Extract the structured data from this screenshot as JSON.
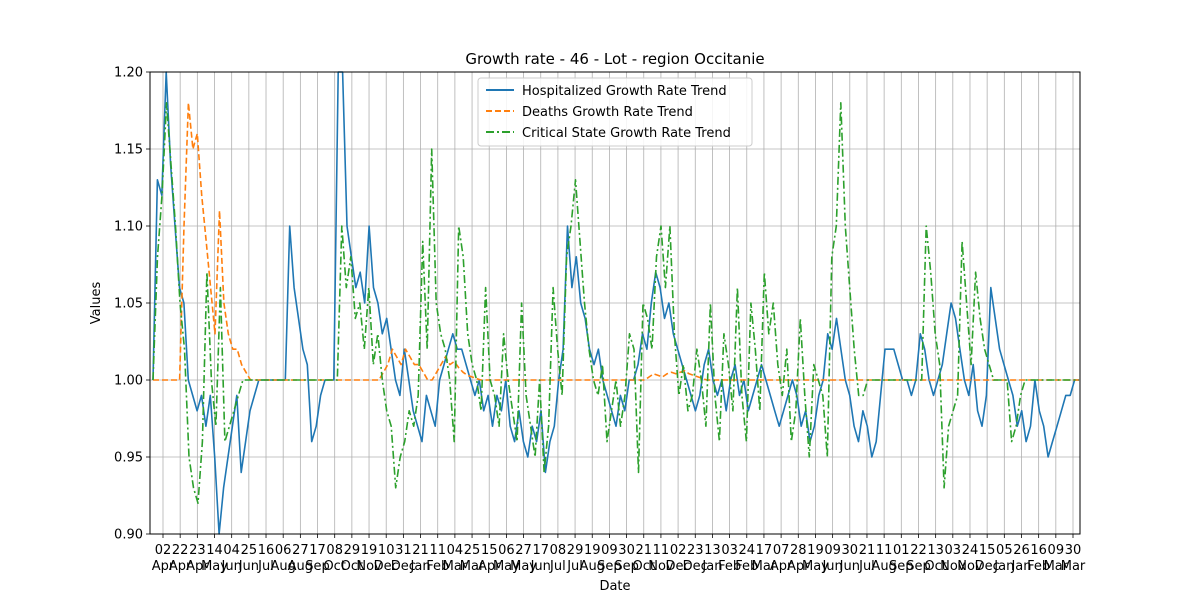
{
  "chart_data": {
    "type": "line",
    "title": "Growth rate - 46 - Lot - region Occitanie",
    "xlabel": "Date",
    "ylabel": "Values",
    "ylim": [
      0.9,
      1.2
    ],
    "y_ticks": [
      "0.90",
      "0.95",
      "1.00",
      "1.05",
      "1.10",
      "1.15",
      "1.20"
    ],
    "grid": true,
    "legend_position": "top-center",
    "x_ticks": [
      {
        "day": "02",
        "month": "Apr"
      },
      {
        "day": "22",
        "month": "Apr"
      },
      {
        "day": "23",
        "month": "Apr"
      },
      {
        "day": "14",
        "month": "May"
      },
      {
        "day": "04",
        "month": "Jun"
      },
      {
        "day": "25",
        "month": "Jun"
      },
      {
        "day": "16",
        "month": "Jul"
      },
      {
        "day": "06",
        "month": "Aug"
      },
      {
        "day": "27",
        "month": "Aug"
      },
      {
        "day": "17",
        "month": "Sep"
      },
      {
        "day": "08",
        "month": "Oct"
      },
      {
        "day": "29",
        "month": "Oct"
      },
      {
        "day": "19",
        "month": "Nov"
      },
      {
        "day": "10",
        "month": "Dec"
      },
      {
        "day": "31",
        "month": "Dec"
      },
      {
        "day": "21",
        "month": "Jan"
      },
      {
        "day": "11",
        "month": "Feb"
      },
      {
        "day": "04",
        "month": "Mar"
      },
      {
        "day": "25",
        "month": "Mar"
      },
      {
        "day": "15",
        "month": "Apr"
      },
      {
        "day": "06",
        "month": "May"
      },
      {
        "day": "27",
        "month": "May"
      },
      {
        "day": "17",
        "month": "Jun"
      },
      {
        "day": "08",
        "month": "Jul"
      },
      {
        "day": "29",
        "month": "Jul"
      },
      {
        "day": "19",
        "month": "Aug"
      },
      {
        "day": "09",
        "month": "Sep"
      },
      {
        "day": "30",
        "month": "Sep"
      },
      {
        "day": "21",
        "month": "Oct"
      },
      {
        "day": "11",
        "month": "Nov"
      },
      {
        "day": "02",
        "month": "Dec"
      },
      {
        "day": "23",
        "month": "Dec"
      },
      {
        "day": "13",
        "month": "Jan"
      },
      {
        "day": "03",
        "month": "Feb"
      },
      {
        "day": "24",
        "month": "Feb"
      },
      {
        "day": "17",
        "month": "Mar"
      },
      {
        "day": "07",
        "month": "Apr"
      },
      {
        "day": "28",
        "month": "Apr"
      },
      {
        "day": "19",
        "month": "May"
      },
      {
        "day": "09",
        "month": "Jun"
      },
      {
        "day": "30",
        "month": "Jun"
      },
      {
        "day": "21",
        "month": "Jul"
      },
      {
        "day": "11",
        "month": "Aug"
      },
      {
        "day": "01",
        "month": "Sep"
      },
      {
        "day": "22",
        "month": "Sep"
      },
      {
        "day": "13",
        "month": "Oct"
      },
      {
        "day": "03",
        "month": "Nov"
      },
      {
        "day": "24",
        "month": "Nov"
      },
      {
        "day": "15",
        "month": "Dec"
      },
      {
        "day": "05",
        "month": "Jan"
      },
      {
        "day": "26",
        "month": "Jan"
      },
      {
        "day": "16",
        "month": "Feb"
      },
      {
        "day": "09",
        "month": "Mar"
      },
      {
        "day": "30",
        "month": "Mar"
      }
    ],
    "series": [
      {
        "name": "Hospitalized Growth Rate Trend",
        "color": "#1f77b4",
        "style": "solid",
        "values": [
          1.0,
          1.13,
          1.12,
          1.2,
          1.14,
          1.1,
          1.06,
          1.05,
          1.0,
          0.99,
          0.98,
          0.99,
          0.97,
          0.99,
          0.95,
          0.9,
          0.93,
          0.95,
          0.97,
          0.99,
          0.94,
          0.96,
          0.98,
          0.99,
          1.0,
          1.0,
          1.0,
          1.0,
          1.0,
          1.0,
          1.0,
          1.1,
          1.06,
          1.04,
          1.02,
          1.01,
          0.96,
          0.97,
          0.99,
          1.0,
          1.0,
          1.0,
          1.2,
          1.2,
          1.1,
          1.08,
          1.06,
          1.07,
          1.05,
          1.1,
          1.06,
          1.05,
          1.03,
          1.04,
          1.02,
          1.0,
          0.99,
          1.02,
          1.0,
          0.98,
          0.97,
          0.96,
          0.99,
          0.98,
          0.97,
          1.0,
          1.01,
          1.02,
          1.03,
          1.02,
          1.02,
          1.01,
          1.0,
          0.99,
          1.0,
          0.98,
          0.99,
          0.97,
          0.99,
          0.98,
          1.0,
          0.97,
          0.96,
          0.98,
          0.96,
          0.95,
          0.97,
          0.96,
          0.98,
          0.94,
          0.96,
          0.97,
          1.0,
          1.02,
          1.1,
          1.06,
          1.08,
          1.05,
          1.04,
          1.02,
          1.01,
          1.02,
          1.0,
          0.99,
          0.98,
          0.97,
          0.99,
          0.98,
          1.0,
          1.0,
          1.01,
          1.03,
          1.02,
          1.05,
          1.07,
          1.06,
          1.04,
          1.05,
          1.03,
          1.02,
          1.01,
          1.0,
          0.99,
          0.98,
          0.99,
          1.01,
          1.02,
          1.0,
          0.99,
          1.0,
          0.98,
          1.0,
          1.01,
          0.99,
          1.0,
          0.98,
          0.99,
          1.0,
          1.01,
          1.0,
          0.99,
          0.98,
          0.97,
          0.98,
          0.99,
          1.0,
          0.99,
          0.97,
          0.98,
          0.96,
          0.97,
          0.99,
          1.0,
          1.03,
          1.02,
          1.04,
          1.02,
          1.0,
          0.99,
          0.97,
          0.96,
          0.98,
          0.97,
          0.95,
          0.96,
          0.99,
          1.02,
          1.02,
          1.02,
          1.01,
          1.0,
          1.0,
          0.99,
          1.0,
          1.03,
          1.02,
          1.0,
          0.99,
          1.0,
          1.01,
          1.03,
          1.05,
          1.04,
          1.02,
          1.0,
          0.99,
          1.01,
          0.98,
          0.97,
          0.99,
          1.06,
          1.04,
          1.02,
          1.01,
          1.0,
          0.99,
          0.97,
          0.98,
          0.96,
          0.97,
          1.0,
          0.98,
          0.97,
          0.95,
          0.96,
          0.97,
          0.98,
          0.99,
          0.99,
          1.0,
          1.0
        ]
      },
      {
        "name": "Deaths Growth Rate Trend",
        "color": "#ff7f0e",
        "style": "dashed",
        "values": [
          1.0,
          1.0,
          1.0,
          1.0,
          1.0,
          1.0,
          1.0,
          1.1,
          1.18,
          1.15,
          1.16,
          1.12,
          1.09,
          1.06,
          1.03,
          1.11,
          1.05,
          1.03,
          1.02,
          1.02,
          1.01,
          1.005,
          1.0,
          1.0,
          1.0,
          1.0,
          1.0,
          1.0,
          1.0,
          1.0,
          1.0,
          1.0,
          1.0,
          1.0,
          1.0,
          1.0,
          1.0,
          1.0,
          1.0,
          1.0,
          1.0,
          1.0,
          1.0,
          1.0,
          1.0,
          1.0,
          1.0,
          1.0,
          1.0,
          1.0,
          1.0,
          1.0,
          1.005,
          1.01,
          1.02,
          1.015,
          1.01,
          1.02,
          1.015,
          1.01,
          1.01,
          1.005,
          1.0,
          1.0,
          1.005,
          1.01,
          1.015,
          1.01,
          1.012,
          1.008,
          1.005,
          1.003,
          1.002,
          1.001,
          1.0,
          1.0,
          1.0,
          1.0,
          1.0,
          1.0,
          1.0,
          1.0,
          1.0,
          1.0,
          1.0,
          1.0,
          1.0,
          1.0,
          1.0,
          1.0,
          1.0,
          1.0,
          1.0,
          1.0,
          1.0,
          1.0,
          1.0,
          1.0,
          1.0,
          1.0,
          1.0,
          1.0,
          1.0,
          1.0,
          1.0,
          1.0,
          1.0,
          1.0,
          1.0,
          1.0,
          1.0,
          1.0,
          1.002,
          1.004,
          1.003,
          1.002,
          1.004,
          1.005,
          1.004,
          1.005,
          1.006,
          1.004,
          1.003,
          1.002,
          1.001,
          1.0,
          1.0,
          1.0,
          1.0,
          1.0,
          1.0,
          1.0,
          1.0,
          1.0,
          1.0,
          1.0,
          1.0,
          1.0,
          1.0,
          1.0,
          1.0,
          1.0,
          1.0,
          1.0,
          1.0,
          1.0,
          1.0,
          1.0,
          1.0,
          1.0,
          1.0,
          1.0,
          1.0,
          1.0,
          1.0,
          1.0,
          1.0,
          1.0,
          1.0,
          1.0,
          1.0,
          1.0,
          1.0,
          1.0,
          1.0,
          1.0,
          1.0,
          1.0,
          1.0,
          1.0,
          1.0,
          1.0,
          1.0,
          1.0,
          1.0,
          1.0,
          1.0,
          1.0,
          1.0,
          1.0,
          1.0,
          1.0,
          1.0,
          1.0,
          1.0,
          1.0,
          1.0,
          1.0,
          1.0,
          1.0,
          1.0,
          1.0,
          1.0,
          1.0,
          1.0,
          1.0,
          1.0,
          1.0,
          1.0,
          1.0,
          1.0,
          1.0,
          1.0,
          1.0,
          1.0,
          1.0,
          1.0,
          1.0,
          1.0,
          1.0
        ]
      },
      {
        "name": "Critical State Growth Rate Trend",
        "color": "#2ca02c",
        "style": "dashdot",
        "values": [
          1.0,
          1.08,
          1.12,
          1.18,
          1.14,
          1.1,
          1.05,
          1.02,
          0.95,
          0.93,
          0.92,
          0.96,
          1.07,
          1.0,
          0.97,
          1.06,
          0.96,
          0.97,
          0.98,
          0.99,
          1.0,
          1.0,
          1.0,
          1.0,
          1.0,
          1.0,
          1.0,
          1.0,
          1.0,
          1.0,
          1.0,
          1.0,
          1.0,
          1.0,
          1.0,
          1.0,
          1.0,
          1.0,
          1.0,
          1.0,
          1.0,
          1.0,
          1.1,
          1.06,
          1.08,
          1.04,
          1.05,
          1.02,
          1.06,
          1.01,
          1.03,
          1.0,
          0.98,
          0.97,
          0.93,
          0.95,
          0.96,
          0.98,
          0.97,
          0.99,
          1.09,
          1.02,
          1.15,
          1.05,
          1.03,
          1.02,
          1.0,
          0.96,
          1.1,
          1.08,
          1.03,
          1.01,
          1.0,
          0.98,
          1.06,
          1.0,
          0.99,
          0.97,
          1.03,
          1.0,
          0.98,
          0.96,
          1.05,
          0.99,
          0.97,
          0.95,
          1.0,
          0.94,
          0.97,
          1.06,
          1.02,
          0.99,
          1.08,
          1.1,
          1.13,
          1.09,
          1.05,
          1.02,
          1.0,
          0.99,
          1.01,
          0.96,
          0.98,
          1.0,
          0.97,
          0.99,
          1.03,
          1.02,
          0.94,
          1.05,
          1.04,
          1.02,
          1.08,
          1.1,
          1.06,
          1.1,
          1.03,
          0.99,
          1.01,
          0.98,
          0.99,
          1.02,
          1.0,
          0.97,
          1.05,
          0.99,
          0.96,
          1.03,
          1.01,
          0.98,
          1.06,
          0.99,
          0.96,
          1.05,
          1.02,
          0.98,
          1.07,
          1.03,
          1.05,
          1.01,
          0.99,
          1.02,
          0.96,
          0.98,
          1.04,
          0.99,
          0.95,
          1.01,
          1.0,
          0.99,
          0.95,
          1.08,
          1.1,
          1.18,
          1.1,
          1.06,
          1.02,
          0.99,
          0.99,
          1.0,
          1.0,
          1.0,
          1.0,
          1.0,
          1.0,
          1.0,
          1.0,
          1.0,
          1.0,
          1.0,
          1.0,
          1.0,
          1.1,
          1.07,
          1.03,
          1.01,
          0.93,
          0.97,
          0.98,
          0.99,
          1.09,
          1.05,
          1.01,
          1.07,
          1.04,
          1.02,
          1.01,
          1.0,
          1.0,
          1.0,
          1.0,
          0.96,
          0.97,
          0.99,
          1.0,
          1.0,
          1.0,
          1.0,
          1.0,
          1.0,
          1.0,
          1.0,
          1.0,
          1.0,
          1.0,
          1.0,
          1.0
        ]
      }
    ]
  }
}
